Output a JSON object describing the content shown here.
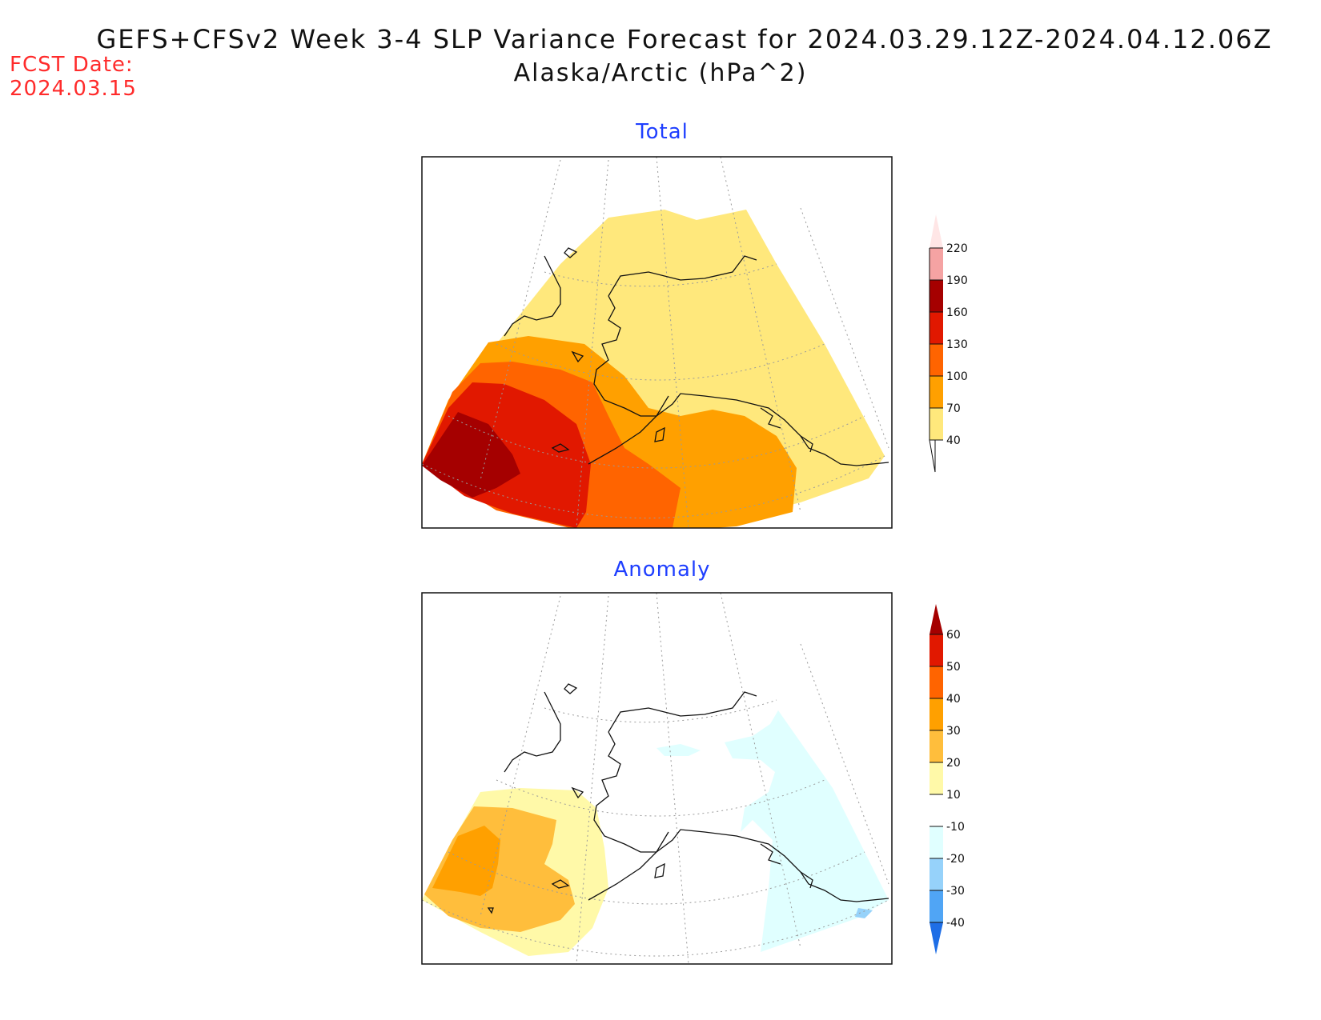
{
  "header": {
    "title": "GEFS+CFSv2 Week 3-4 SLP Variance Forecast for 2024.03.29.12Z-2024.04.12.06Z",
    "subtitle": "Alaska/Arctic (hPa^2)",
    "fcst_label": "FCST Date:",
    "fcst_date": "2024.03.15"
  },
  "panels": {
    "total": {
      "title": "Total",
      "colorbar": {
        "labels": [
          "40",
          "70",
          "100",
          "130",
          "160",
          "190",
          "220"
        ],
        "colors": [
          "#ffe87c",
          "#ffa000",
          "#ff6400",
          "#e11800",
          "#a50000",
          "#f5a3a3",
          "#ffe6e6"
        ]
      }
    },
    "anomaly": {
      "title": "Anomaly",
      "colorbar": {
        "labels": [
          "60",
          "50",
          "40",
          "30",
          "20",
          "10",
          "-10",
          "-20",
          "-30",
          "-40"
        ],
        "colors": [
          "#a50000",
          "#e11800",
          "#ff6400",
          "#ffa000",
          "#ffbe3c",
          "#fff9a8",
          "#ffffff",
          "#e0ffff",
          "#96d2fa",
          "#50a5f5",
          "#1e6ee6"
        ]
      }
    }
  }
}
